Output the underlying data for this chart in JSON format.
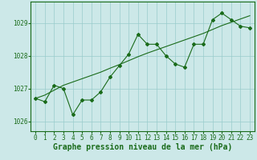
{
  "xlabel": "Graphe pression niveau de la mer (hPa)",
  "background_color": "#cce8e8",
  "grid_color": "#99cccc",
  "line_color": "#1a6b1a",
  "spine_color": "#1a6b1a",
  "x_values": [
    0,
    1,
    2,
    3,
    4,
    5,
    6,
    7,
    8,
    9,
    10,
    11,
    12,
    13,
    14,
    15,
    16,
    17,
    18,
    19,
    20,
    21,
    22,
    23
  ],
  "y_main": [
    1026.7,
    1026.6,
    1027.1,
    1027.0,
    1026.2,
    1026.65,
    1026.65,
    1026.9,
    1027.35,
    1027.7,
    1028.05,
    1028.65,
    1028.35,
    1028.35,
    1028.0,
    1027.75,
    1027.65,
    1028.35,
    1028.35,
    1029.1,
    1029.3,
    1029.1,
    1028.9,
    1028.85
  ],
  "y_smooth": [
    1026.7,
    1026.8,
    1026.95,
    1027.1,
    1027.2,
    1027.3,
    1027.4,
    1027.5,
    1027.62,
    1027.73,
    1027.85,
    1027.97,
    1028.08,
    1028.18,
    1028.28,
    1028.38,
    1028.48,
    1028.58,
    1028.68,
    1028.8,
    1028.92,
    1029.02,
    1029.12,
    1029.22
  ],
  "ylim": [
    1025.7,
    1029.65
  ],
  "yticks": [
    1026,
    1027,
    1028,
    1029
  ],
  "xticks": [
    0,
    1,
    2,
    3,
    4,
    5,
    6,
    7,
    8,
    9,
    10,
    11,
    12,
    13,
    14,
    15,
    16,
    17,
    18,
    19,
    20,
    21,
    22,
    23
  ],
  "tick_fontsize": 5.5,
  "xlabel_fontsize": 7,
  "marker": "D",
  "marker_size": 2.0,
  "linewidth": 0.8
}
